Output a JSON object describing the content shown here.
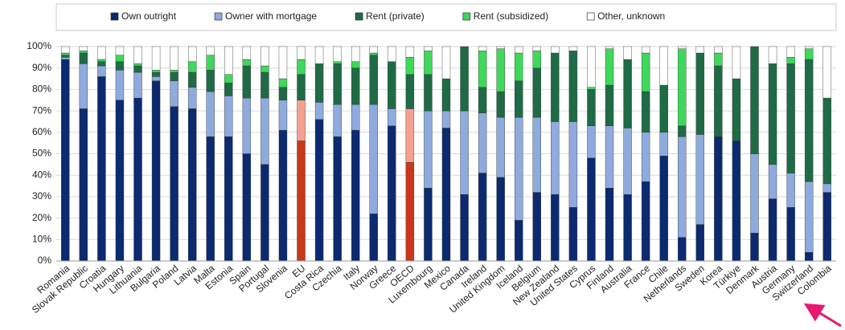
{
  "chart_data": {
    "type": "stacked_bar",
    "categories": [
      "Romania",
      "Slovak Republic",
      "Croatia",
      "Hungary",
      "Lithuania",
      "Bulgaria",
      "Poland",
      "Latvia",
      "Malta",
      "Estonia",
      "Spain",
      "Portugal",
      "Slovenia",
      "EU",
      "Costa Rica",
      "Czechia",
      "Italy",
      "Norway",
      "Greece",
      "OECD",
      "Luxembourg",
      "Mexico",
      "Canada",
      "Ireland",
      "United Kingdom",
      "Iceland",
      "Belgium",
      "New Zealand",
      "United States",
      "Cyprus",
      "Finland",
      "Australia",
      "France",
      "Chile",
      "Netherlands",
      "Sweden",
      "Korea",
      "Türkiye",
      "Denmark",
      "Austria",
      "Germany",
      "Switzerland",
      "Colombia"
    ],
    "highlight": [
      "EU",
      "OECD"
    ],
    "series": [
      {
        "name": "Own outright",
        "color": "#0b2a6f",
        "highlight_color": "#c9381a",
        "values": [
          94,
          71,
          86,
          75,
          76,
          84,
          72,
          71,
          58,
          58,
          50,
          45,
          61,
          56,
          66,
          58,
          61,
          22,
          63,
          46,
          34,
          62,
          31,
          41,
          39,
          19,
          32,
          31,
          25,
          48,
          34,
          31,
          37,
          49,
          11,
          17,
          58,
          56,
          13,
          29,
          25,
          4,
          32
        ]
      },
      {
        "name": "Owner with mortgage",
        "color": "#8faadc",
        "highlight_color": "#f4a090",
        "values": [
          1,
          21,
          5,
          14,
          12,
          2,
          12,
          10,
          21,
          19,
          26,
          31,
          14,
          19,
          8,
          15,
          12,
          51,
          8,
          25,
          36,
          8,
          39,
          28,
          28,
          48,
          35,
          34,
          40,
          15,
          29,
          31,
          23,
          11,
          47,
          42,
          0,
          0,
          37,
          16,
          16,
          33,
          4
        ]
      },
      {
        "name": "Rent (private)",
        "color": "#1e6b45",
        "values": [
          1,
          5,
          2,
          4,
          3,
          2,
          4,
          7,
          10,
          6,
          15,
          12,
          6,
          12,
          18,
          19,
          17,
          23,
          22,
          16,
          17,
          15,
          30,
          12,
          12,
          17,
          23,
          32,
          33,
          17,
          19,
          32,
          19,
          22,
          5,
          38,
          33,
          29,
          50,
          47,
          51,
          57,
          40
        ]
      },
      {
        "name": "Rent (subsidized)",
        "color": "#3ed85a",
        "values": [
          1,
          1,
          1,
          3,
          1,
          1,
          1,
          5,
          7,
          4,
          3,
          3,
          4,
          7,
          0,
          1,
          3,
          1,
          0,
          8,
          11,
          0,
          0,
          17,
          20,
          13,
          8,
          0,
          0,
          1,
          17,
          0,
          18,
          0,
          36,
          0,
          6,
          0,
          0,
          0,
          3,
          5,
          0
        ]
      },
      {
        "name": "Other, unknown",
        "color": "#ffffff",
        "values": [
          3,
          2,
          6,
          4,
          8,
          11,
          11,
          7,
          4,
          13,
          6,
          9,
          15,
          6,
          8,
          7,
          7,
          3,
          7,
          5,
          2,
          15,
          0,
          2,
          1,
          3,
          2,
          3,
          2,
          19,
          1,
          6,
          3,
          18,
          1,
          3,
          3,
          15,
          0,
          8,
          5,
          1,
          24
        ]
      }
    ],
    "ylim": [
      0,
      100
    ],
    "yticks": [
      {
        "value": 0,
        "label": "0%"
      },
      {
        "value": 10,
        "label": "10%"
      },
      {
        "value": 20,
        "label": "20%"
      },
      {
        "value": 30,
        "label": "30%"
      },
      {
        "value": 40,
        "label": "40%"
      },
      {
        "value": 50,
        "label": "50%"
      },
      {
        "value": 60,
        "label": "60%"
      },
      {
        "value": 70,
        "label": "70%"
      },
      {
        "value": 80,
        "label": "80%"
      },
      {
        "value": 90,
        "label": "90%"
      },
      {
        "value": 100,
        "label": "100%"
      }
    ],
    "grid": true,
    "legend": "top"
  }
}
